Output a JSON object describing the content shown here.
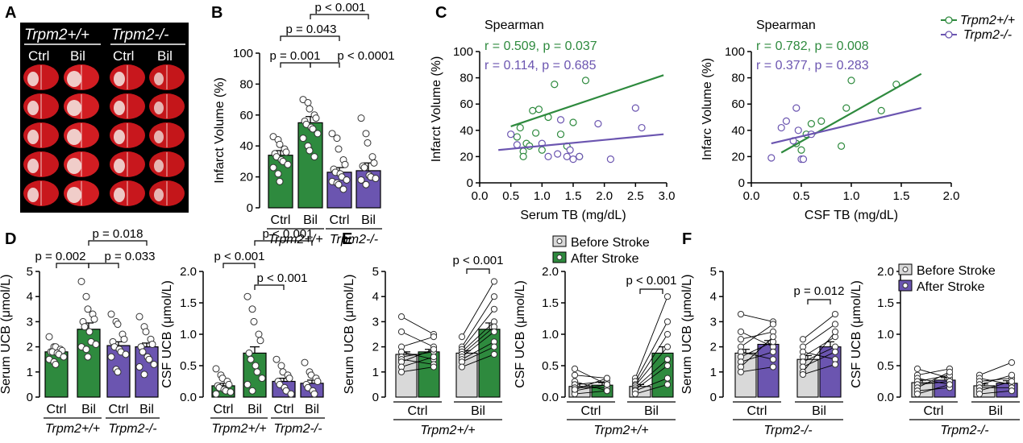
{
  "panel_labels": {
    "A": "A",
    "B": "B",
    "C": "C",
    "D": "D",
    "E": "E",
    "F": "F"
  },
  "colors": {
    "gray": "#d9d9d9",
    "green": "#2e8a3e",
    "purple": "#6b55b0",
    "slice_red": "#c8171d"
  },
  "brain": {
    "group_wt": "Trpm2+/+",
    "group_ko": "Trpm2-/-",
    "columns": [
      "Ctrl",
      "Bil",
      "Ctrl",
      "Bil"
    ],
    "rows": 5
  },
  "chart_data": [
    {
      "id": "B",
      "type": "bar",
      "title": "",
      "ylabel": "Infarct Volume (%)",
      "ylim": [
        0,
        100
      ],
      "yticks": [
        0,
        20,
        40,
        60,
        80,
        100
      ],
      "categories": [
        "Ctrl",
        "Bil",
        "Ctrl",
        "Bil"
      ],
      "group_labels": [
        "Trpm2+/+",
        "Trpm2-/-"
      ],
      "values": [
        34,
        55,
        23,
        24
      ],
      "errors": [
        3,
        4,
        3,
        5
      ],
      "points": [
        [
          46,
          44,
          41,
          38,
          36,
          35,
          33,
          31,
          30,
          28,
          26,
          22,
          17
        ],
        [
          70,
          68,
          64,
          60,
          58,
          56,
          54,
          52,
          51,
          48,
          45,
          40,
          37,
          33
        ],
        [
          48,
          45,
          38,
          31,
          28,
          25,
          23,
          22,
          20,
          18,
          17,
          16,
          15,
          12
        ],
        [
          58,
          48,
          42,
          33,
          29,
          27,
          26,
          21,
          20,
          19,
          18,
          15
        ]
      ],
      "comparisons": [
        {
          "label": "p = 0.001",
          "from": 0,
          "to": 1
        },
        {
          "label": "p = 0.043",
          "from": 0,
          "to": 2
        },
        {
          "label": "p < 0.001",
          "from": 1,
          "to": 3
        },
        {
          "label": "p < 0.0001",
          "from": 1,
          "to": 2
        }
      ]
    },
    {
      "id": "C1",
      "type": "scatter",
      "xlabel": "Serum TB (mg/dL)",
      "ylabel": "Infarct Volume (%)",
      "xlim": [
        0,
        3
      ],
      "ylim": [
        0,
        100
      ],
      "xticks": [
        "0.0",
        "0.5",
        "1.0",
        "1.5",
        "2.0",
        "2.5",
        "3.0"
      ],
      "yticks": [
        0,
        20,
        40,
        60,
        80,
        100
      ],
      "stats_title": "Spearman",
      "series": [
        {
          "name": "Trpm2+/+",
          "color": "#2e8a3e",
          "stat": "r = 0.509, p = 0.037",
          "x": [
            0.6,
            0.65,
            0.7,
            0.75,
            0.8,
            0.85,
            0.9,
            0.95,
            1.0,
            1.1,
            1.2,
            1.3,
            1.4,
            1.5,
            1.6,
            1.7,
            0.7
          ],
          "y": [
            35,
            42,
            24,
            30,
            28,
            55,
            38,
            56,
            25,
            50,
            75,
            37,
            28,
            46,
            20,
            78,
            20
          ],
          "fit": [
            [
              0.5,
              43
            ],
            [
              2.95,
              82
            ]
          ]
        },
        {
          "name": "Trpm2-/-",
          "color": "#6b55b0",
          "stat": "r = 0.114, p = 0.685",
          "x": [
            0.5,
            1.1,
            1.3,
            1.4,
            1.45,
            1.5,
            1.6,
            1.9,
            2.1,
            2.5,
            2.6,
            0.6,
            1.0,
            1.25
          ],
          "y": [
            37,
            20,
            48,
            20,
            25,
            18,
            20,
            45,
            18,
            57,
            42,
            29,
            30,
            22
          ],
          "fit": [
            [
              0.3,
              25
            ],
            [
              2.95,
              37
            ]
          ]
        }
      ]
    },
    {
      "id": "C2",
      "type": "scatter",
      "xlabel": "CSF TB (mg/dL)",
      "ylabel": "Infarc Volume (%)",
      "xlim": [
        0,
        2
      ],
      "ylim": [
        0,
        100
      ],
      "xticks": [
        "0.0",
        "0.5",
        "1.0",
        "1.5",
        "2.0"
      ],
      "yticks": [
        0,
        20,
        40,
        60,
        80,
        100
      ],
      "stats_title": "Spearman",
      "series": [
        {
          "name": "Trpm2+/+",
          "color": "#2e8a3e",
          "stat": "r = 0.782, p = 0.008",
          "x": [
            0.45,
            0.55,
            0.6,
            0.9,
            0.95,
            1.0,
            1.3,
            1.45,
            0.5,
            0.7
          ],
          "y": [
            30,
            37,
            45,
            28,
            57,
            78,
            55,
            75,
            25,
            47
          ],
          "fit": [
            [
              0.3,
              23
            ],
            [
              1.7,
              83
            ]
          ]
        },
        {
          "name": "Trpm2-/-",
          "color": "#6b55b0",
          "stat": "r = 0.377, p = 0.283",
          "x": [
            0.2,
            0.3,
            0.35,
            0.45,
            0.47,
            0.5,
            0.52,
            0.6,
            0.42
          ],
          "y": [
            19,
            42,
            47,
            57,
            40,
            18,
            18,
            37,
            32
          ],
          "fit": [
            [
              0.2,
              30
            ],
            [
              1.7,
              57
            ]
          ]
        }
      ]
    },
    {
      "id": "D1",
      "type": "bar",
      "ylabel": "Serum UCB (μmol/L)",
      "ylim": [
        0,
        5
      ],
      "yticks": [
        0,
        1,
        2,
        3,
        4,
        5
      ],
      "categories": [
        "Ctrl",
        "Bil",
        "Ctrl",
        "Bil"
      ],
      "group_labels": [
        "Trpm2+/+",
        "Trpm2-/-"
      ],
      "values": [
        1.8,
        2.7,
        2.05,
        2.0
      ],
      "errors": [
        0.1,
        0.25,
        0.15,
        0.15
      ],
      "points": [
        [
          2.4,
          2.0,
          2.0,
          1.9,
          1.85,
          1.8,
          1.8,
          1.75,
          1.7,
          1.6,
          1.5,
          1.4,
          1.3
        ],
        [
          4.6,
          4.0,
          3.5,
          3.3,
          3.1,
          3.0,
          2.8,
          2.6,
          2.2,
          2.1,
          2.0,
          1.9,
          1.6
        ],
        [
          3.3,
          3.0,
          2.9,
          2.5,
          2.3,
          2.2,
          2.0,
          1.9,
          1.8,
          1.7,
          1.6,
          1.1,
          1.0
        ],
        [
          3.2,
          2.8,
          2.6,
          2.3,
          2.1,
          2.0,
          1.8,
          1.6,
          1.5,
          1.3,
          1.2,
          0.9
        ]
      ],
      "comparisons": [
        {
          "label": "p = 0.002",
          "from": 0,
          "to": 1
        },
        {
          "label": "p = 0.033",
          "from": 1,
          "to": 2
        },
        {
          "label": "p = 0.018",
          "from": 1,
          "to": 3
        }
      ]
    },
    {
      "id": "D2",
      "type": "bar",
      "ylabel": "CSF UCB (μmol/L)",
      "ylim": [
        0,
        2
      ],
      "yticks": [
        "0.0",
        "0.5",
        "1.0",
        "1.5",
        "2.0"
      ],
      "categories": [
        "Ctrl",
        "Bil",
        "Ctrl",
        "Bil"
      ],
      "group_labels": [
        "Trpm2+/+",
        "Trpm2-/-"
      ],
      "values": [
        0.18,
        0.7,
        0.25,
        0.22
      ],
      "errors": [
        0.04,
        0.1,
        0.05,
        0.05
      ],
      "points": [
        [
          0.45,
          0.35,
          0.3,
          0.25,
          0.2,
          0.18,
          0.15,
          0.12,
          0.1,
          0.08,
          0.05
        ],
        [
          1.6,
          1.4,
          1.2,
          1.0,
          0.9,
          0.7,
          0.6,
          0.5,
          0.4,
          0.3,
          0.2,
          0.1
        ],
        [
          0.6,
          0.5,
          0.4,
          0.35,
          0.3,
          0.25,
          0.2,
          0.15,
          0.1,
          0.05
        ],
        [
          0.55,
          0.4,
          0.35,
          0.3,
          0.25,
          0.2,
          0.15,
          0.1,
          0.05
        ]
      ],
      "comparisons": [
        {
          "label": "p < 0.001",
          "from": 0,
          "to": 1
        },
        {
          "label": "p < 0.001",
          "from": 1,
          "to": 2
        },
        {
          "label": "p < 0.001",
          "from": 1,
          "to": 3
        }
      ]
    },
    {
      "id": "E1",
      "type": "bar",
      "ylabel": "Serum UCB (μmol/L)",
      "ylim": [
        0,
        5
      ],
      "yticks": [
        0,
        1,
        2,
        3,
        4,
        5
      ],
      "categories": [
        "Ctrl",
        "Bil"
      ],
      "group_label": "Trpm2+/+",
      "series": [
        {
          "name": "Before Stroke",
          "color": "#d9d9d9",
          "values": [
            1.7,
            1.75
          ],
          "errors": [
            0.1,
            0.1
          ]
        },
        {
          "name": "After Stroke",
          "color": "#2e8a3e",
          "values": [
            1.8,
            2.7
          ],
          "errors": [
            0.1,
            0.25
          ]
        }
      ],
      "paired": [
        [
          [
            3.2,
            2.5
          ],
          [
            2.6,
            2.0
          ],
          [
            2.0,
            2.4
          ],
          [
            1.8,
            1.5
          ],
          [
            1.6,
            1.8
          ],
          [
            1.5,
            1.3
          ],
          [
            1.4,
            1.9
          ],
          [
            1.2,
            1.6
          ],
          [
            1.0,
            1.2
          ]
        ],
        [
          [
            2.4,
            4.6
          ],
          [
            2.0,
            4.0
          ],
          [
            1.9,
            3.5
          ],
          [
            1.8,
            3.0
          ],
          [
            1.7,
            2.8
          ],
          [
            1.6,
            2.6
          ],
          [
            1.5,
            2.2
          ],
          [
            1.4,
            2.0
          ],
          [
            1.2,
            1.7
          ]
        ]
      ],
      "comparisons": [
        {
          "label": "p < 0.001",
          "category": 1
        }
      ],
      "legend": [
        "Before Stroke",
        "After Stroke"
      ]
    },
    {
      "id": "E2",
      "type": "bar",
      "ylabel": "CSF UCB (μmol/L)",
      "ylim": [
        0,
        2
      ],
      "yticks": [
        "0.0",
        "0.5",
        "1.0",
        "1.5",
        "2.0"
      ],
      "categories": [
        "Ctrl",
        "Bil"
      ],
      "group_label": "Trpm2+/+",
      "series": [
        {
          "name": "Before Stroke",
          "color": "#d9d9d9",
          "values": [
            0.17,
            0.17
          ],
          "errors": [
            0.04,
            0.03
          ]
        },
        {
          "name": "After Stroke",
          "color": "#2e8a3e",
          "values": [
            0.19,
            0.7
          ],
          "errors": [
            0.04,
            0.1
          ]
        }
      ],
      "paired": [
        [
          [
            0.45,
            0.2
          ],
          [
            0.35,
            0.3
          ],
          [
            0.25,
            0.1
          ],
          [
            0.2,
            0.25
          ],
          [
            0.15,
            0.15
          ],
          [
            0.1,
            0.2
          ],
          [
            0.05,
            0.1
          ],
          [
            0.12,
            0.3
          ]
        ],
        [
          [
            0.3,
            1.6
          ],
          [
            0.25,
            1.2
          ],
          [
            0.2,
            1.0
          ],
          [
            0.18,
            0.8
          ],
          [
            0.15,
            0.6
          ],
          [
            0.12,
            0.5
          ],
          [
            0.1,
            0.3
          ],
          [
            0.05,
            0.2
          ]
        ]
      ],
      "comparisons": [
        {
          "label": "p < 0.001",
          "category": 1
        }
      ]
    },
    {
      "id": "F1",
      "type": "bar",
      "ylabel": "Serum UCB (μmol/L)",
      "ylim": [
        0,
        5
      ],
      "yticks": [
        0,
        1,
        2,
        3,
        4,
        5
      ],
      "categories": [
        "Ctrl",
        "Bil"
      ],
      "group_label": "Trpm2-/-",
      "series": [
        {
          "name": "Before Stroke",
          "color": "#d9d9d9",
          "values": [
            1.75,
            1.5
          ],
          "errors": [
            0.15,
            0.15
          ]
        },
        {
          "name": "After Stroke",
          "color": "#6b55b0",
          "values": [
            2.1,
            2.0
          ],
          "errors": [
            0.15,
            0.2
          ]
        }
      ],
      "paired": [
        [
          [
            3.3,
            3.0
          ],
          [
            2.6,
            2.0
          ],
          [
            2.3,
            2.6
          ],
          [
            2.0,
            2.9
          ],
          [
            1.8,
            1.5
          ],
          [
            1.6,
            2.2
          ],
          [
            1.4,
            1.8
          ],
          [
            1.2,
            2.4
          ],
          [
            1.0,
            1.2
          ]
        ],
        [
          [
            2.3,
            3.3
          ],
          [
            2.0,
            2.9
          ],
          [
            1.8,
            1.5
          ],
          [
            1.6,
            2.4
          ],
          [
            1.4,
            2.0
          ],
          [
            1.2,
            1.8
          ],
          [
            1.0,
            2.6
          ],
          [
            0.9,
            1.3
          ]
        ]
      ],
      "comparisons": [
        {
          "label": "p = 0.012",
          "category": 1
        }
      ],
      "legend": [
        "Before Stroke",
        "After Stroke"
      ]
    },
    {
      "id": "F2",
      "type": "bar",
      "ylabel": "CSF UCB (μmol/L)",
      "ylim": [
        0,
        2
      ],
      "yticks": [
        "0.0",
        "0.5",
        "1.0",
        "1.5",
        "2.0"
      ],
      "categories": [
        "Ctrl",
        "Bil"
      ],
      "group_label": "Trpm2-/-",
      "series": [
        {
          "name": "Before Stroke",
          "color": "#d9d9d9",
          "values": [
            0.23,
            0.18
          ],
          "errors": [
            0.04,
            0.03
          ]
        },
        {
          "name": "After Stroke",
          "color": "#6b55b0",
          "values": [
            0.27,
            0.22
          ],
          "errors": [
            0.04,
            0.04
          ]
        }
      ],
      "paired": [
        [
          [
            0.45,
            0.3
          ],
          [
            0.35,
            0.45
          ],
          [
            0.3,
            0.2
          ],
          [
            0.25,
            0.35
          ],
          [
            0.2,
            0.25
          ],
          [
            0.15,
            0.4
          ],
          [
            0.1,
            0.15
          ],
          [
            0.05,
            0.2
          ]
        ],
        [
          [
            0.35,
            0.55
          ],
          [
            0.3,
            0.2
          ],
          [
            0.25,
            0.3
          ],
          [
            0.2,
            0.35
          ],
          [
            0.15,
            0.15
          ],
          [
            0.1,
            0.25
          ],
          [
            0.05,
            0.1
          ]
        ]
      ]
    }
  ]
}
